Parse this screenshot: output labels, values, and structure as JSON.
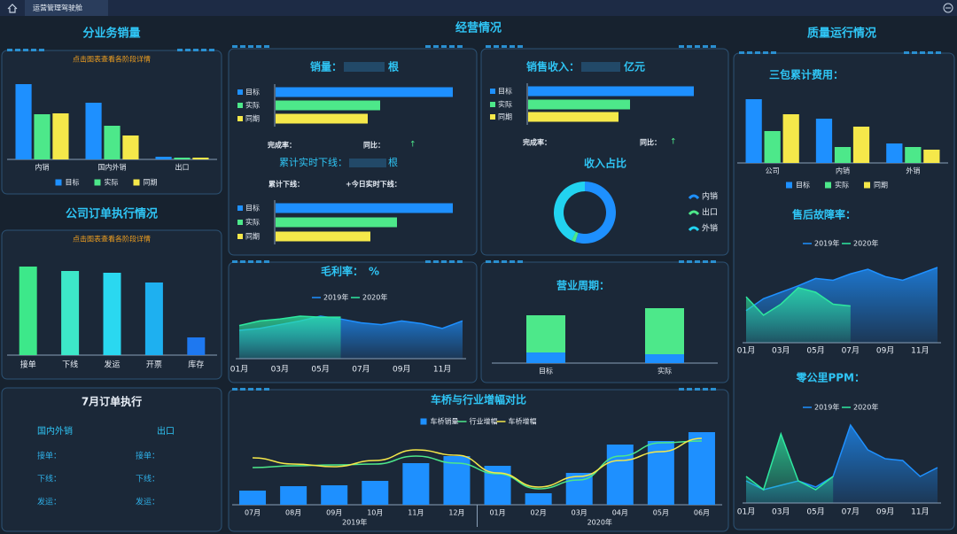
{
  "topbar": {
    "tab": "运营管理驾驶舱"
  },
  "sections": {
    "business_sales": "分业务销量",
    "operations": "经营情况",
    "quality": "质量运行情况",
    "company_orders": "公司订单执行情况"
  },
  "sales_by_business": {
    "type": "grouped_bar",
    "hint": "点击图表查看各阶段详情",
    "categories": [
      "内销",
      "国内外销",
      "出口"
    ],
    "series": [
      {
        "name": "目标",
        "color": "#1e90ff",
        "values": [
          85,
          64,
          3
        ]
      },
      {
        "name": "实际",
        "color": "#4de88a",
        "values": [
          51,
          38,
          2
        ]
      },
      {
        "name": "同期",
        "color": "#f5e84a",
        "values": [
          52,
          27,
          2
        ]
      }
    ]
  },
  "order_execution": {
    "type": "bar",
    "hint": "点击图表查看各阶段详情",
    "categories": [
      "接单",
      "下线",
      "发运",
      "开票",
      "库存"
    ],
    "values": [
      100,
      95,
      93,
      82,
      20
    ],
    "colors": [
      "#3de88a",
      "#3de8c8",
      "#2ad8f0",
      "#1eb0f0",
      "#1e78f0"
    ]
  },
  "july_orders": {
    "title": "7月订单执行",
    "columns": [
      {
        "heading": "国内外销",
        "rows": [
          "接单：",
          "下线：",
          "发运："
        ]
      },
      {
        "heading": "出口",
        "rows": [
          "接单：",
          "下线：",
          "发运："
        ]
      }
    ]
  },
  "sales_volume": {
    "type": "hbar",
    "title": "销量：",
    "unit": "根",
    "bars": {
      "categories": [
        "目标",
        "实际",
        "同期"
      ],
      "values": [
        200,
        118,
        104
      ],
      "colors": [
        "#1e90ff",
        "#4de88a",
        "#f5e84a"
      ]
    },
    "completion_label": "完成率：",
    "yoy_label": "同比：",
    "arrow": "↑",
    "subtitle": "累计实时下线：",
    "subtitle_unit": "根",
    "cumulative_label": "累计下线：",
    "today_label": "+今日实时下线：",
    "cumulative_bars": {
      "categories": [
        "目标",
        "实际",
        "同期"
      ],
      "values": [
        200,
        137,
        107
      ],
      "colors": [
        "#1e90ff",
        "#4de88a",
        "#f5e84a"
      ]
    }
  },
  "sales_revenue": {
    "type": "hbar",
    "title": "销售收入：",
    "unit": "亿元",
    "bars": {
      "categories": [
        "目标",
        "实际",
        "同期"
      ],
      "values": [
        187,
        115,
        102
      ],
      "colors": [
        "#1e90ff",
        "#4de88a",
        "#f5e84a"
      ]
    },
    "completion_label": "完成率：",
    "yoy_label": "同比：",
    "arrow": "↑"
  },
  "income_share": {
    "type": "pie",
    "title": "收入占比",
    "categories": [
      "内销",
      "出口",
      "外销"
    ],
    "values": [
      55,
      2,
      43
    ],
    "colors": [
      "#1e90ff",
      "#4de88a",
      "#22d3f0"
    ]
  },
  "gross_margin": {
    "type": "area",
    "title": "毛利率：",
    "unit": "%",
    "categories": [
      "01月",
      null,
      "03月",
      null,
      "05月",
      null,
      "07月",
      null,
      "09月",
      null,
      "11月",
      null
    ],
    "series": [
      {
        "name": "2019年",
        "color": "#1e90ff",
        "values": [
          30,
          32,
          36,
          40,
          45,
          42,
          38,
          36,
          40,
          37,
          32,
          40
        ]
      },
      {
        "name": "2020年",
        "color": "#2ee8a0",
        "values": [
          35,
          40,
          42,
          45,
          44,
          44,
          null,
          null,
          null,
          null,
          null,
          null
        ]
      }
    ]
  },
  "business_cycle": {
    "type": "stacked_bar",
    "title": "营业周期：",
    "categories": [
      "目标",
      "实际"
    ],
    "series": [
      {
        "color": "#1e90ff",
        "values": [
          12,
          10
        ]
      },
      {
        "color": "#4de88a",
        "values": [
          42,
          52
        ]
      }
    ]
  },
  "axle_comparison": {
    "type": "combo",
    "title": "车桥与行业增幅对比",
    "categories": [
      "07月",
      "08月",
      "09月",
      "10月",
      "11月",
      "12月",
      "01月",
      "02月",
      "03月",
      "04月",
      "05月",
      "06月"
    ],
    "groups": [
      "2019年",
      "2020年"
    ],
    "series": [
      {
        "name": "车桥销量",
        "kind": "bar",
        "color": "#1e90ff",
        "values": [
          16,
          21,
          22,
          27,
          47,
          55,
          44,
          13,
          36,
          68,
          72,
          82
        ]
      },
      {
        "name": "行业增幅",
        "kind": "line",
        "color": "#4de88a",
        "values": [
          42,
          44,
          45,
          46,
          55,
          47,
          35,
          18,
          28,
          55,
          70,
          72
        ]
      },
      {
        "name": "车桥增幅",
        "kind": "line",
        "color": "#f5e84a",
        "values": [
          53,
          46,
          43,
          50,
          62,
          56,
          36,
          20,
          32,
          50,
          60,
          75
        ]
      }
    ]
  },
  "three_guarantee_cost": {
    "type": "grouped_bar",
    "title": "三包累计费用：",
    "categories": [
      "公司",
      "内销",
      "外销"
    ],
    "series": [
      {
        "name": "目标",
        "color": "#1e90ff",
        "values": [
          72,
          50,
          22
        ]
      },
      {
        "name": "实际",
        "color": "#4de88a",
        "values": [
          36,
          18,
          18
        ]
      },
      {
        "name": "同期",
        "color": "#f5e84a",
        "values": [
          55,
          41,
          15
        ]
      }
    ]
  },
  "after_sales_failure": {
    "type": "area",
    "title": "售后故障率：",
    "categories": [
      "01月",
      null,
      "03月",
      null,
      "05月",
      null,
      "07月",
      null,
      "09月",
      null,
      "11月",
      null
    ],
    "series": [
      {
        "name": "2019年",
        "color": "#1e90ff",
        "values": [
          35,
          48,
          55,
          62,
          70,
          68,
          75,
          80,
          72,
          68,
          75,
          82
        ]
      },
      {
        "name": "2020年",
        "color": "#2ee8a0",
        "values": [
          50,
          30,
          42,
          60,
          55,
          42,
          40,
          null,
          null,
          null,
          null,
          null
        ]
      }
    ]
  },
  "zero_km_ppm": {
    "type": "area",
    "title": "零公里PPM：",
    "categories": [
      "01月",
      null,
      "03月",
      null,
      "05月",
      null,
      "07月",
      null,
      "09月",
      null,
      "11月",
      null
    ],
    "series": [
      {
        "name": "2019年",
        "color": "#1e90ff",
        "values": [
          25,
          15,
          20,
          25,
          18,
          30,
          88,
          60,
          50,
          48,
          30,
          40
        ]
      },
      {
        "name": "2020年",
        "color": "#2ee8a0",
        "values": [
          30,
          15,
          78,
          25,
          15,
          30,
          null,
          null,
          null,
          null,
          null,
          null
        ]
      }
    ]
  }
}
